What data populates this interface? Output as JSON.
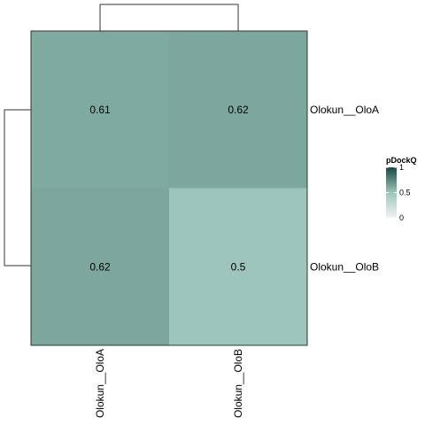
{
  "chart_data": {
    "type": "heatmap",
    "rows": [
      "Olokun__OloA",
      "Olokun__OloB"
    ],
    "columns": [
      "Olokun__OloA",
      "Olokun__OloB"
    ],
    "values": [
      [
        0.61,
        0.62
      ],
      [
        0.62,
        0.5
      ]
    ],
    "value_labels": [
      [
        "0.61",
        "0.62"
      ],
      [
        "0.62",
        "0.5"
      ]
    ],
    "legend": {
      "title": "pDockQ",
      "ticks": [
        1,
        0.5,
        0
      ],
      "tick_labels": [
        "1",
        "0.5",
        "0"
      ],
      "range": [
        0,
        1
      ],
      "placement": "right"
    },
    "colors": {
      "low": "#f2f2f2",
      "mid": "#9dc5bb",
      "high": "#164a3f",
      "border": "#333333",
      "dendrogram": "#333333"
    },
    "row_dendrogram": true,
    "column_dendrogram": true
  }
}
